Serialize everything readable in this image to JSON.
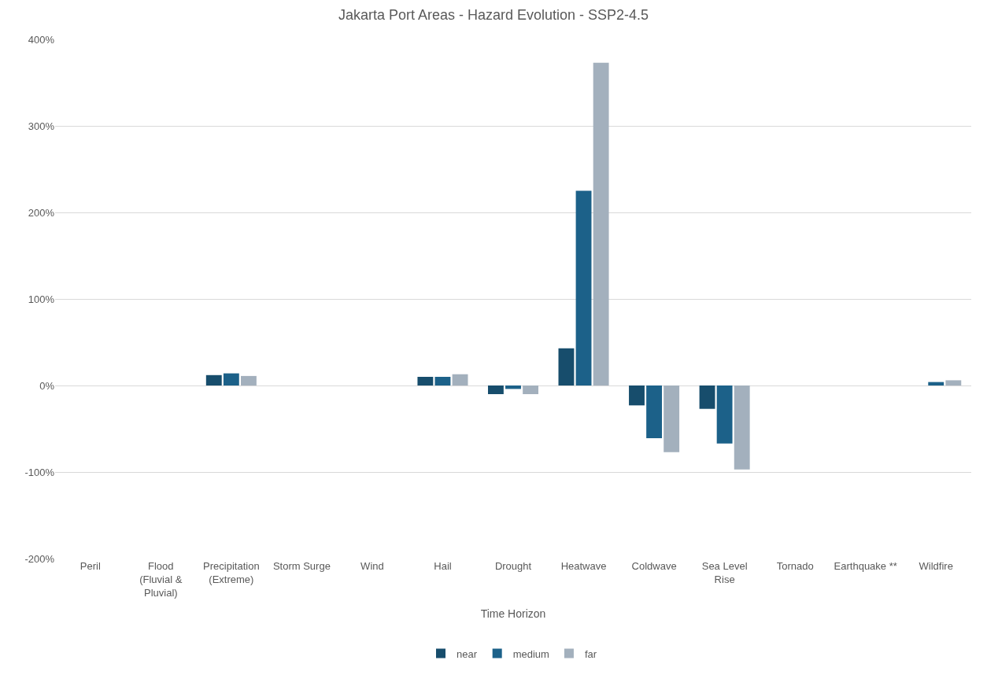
{
  "chart_data": {
    "type": "bar",
    "title": "Jakarta Port Areas - Hazard Evolution - SSP2-4.5",
    "xlabel": "Time Horizon",
    "categories": [
      "Peril",
      "Flood (Fluvial & Pluvial)",
      "Precipitation (Extreme)",
      "Storm Surge",
      "Wind",
      "Hail",
      "Drought",
      "Heatwave",
      "Coldwave",
      "Sea Level Rise",
      "Tornado",
      "Earthquake **",
      "Wildfire"
    ],
    "series": [
      {
        "name": "near",
        "color": "#174d6c",
        "values": [
          null,
          null,
          12,
          null,
          null,
          10,
          -10,
          43,
          -23,
          -27,
          null,
          null,
          null
        ]
      },
      {
        "name": "medium",
        "color": "#1c6189",
        "values": [
          null,
          null,
          14,
          null,
          null,
          10,
          -4,
          225,
          -61,
          -67,
          null,
          null,
          4
        ]
      },
      {
        "name": "far",
        "color": "#a3b0bd",
        "values": [
          null,
          null,
          11,
          null,
          null,
          13,
          -10,
          373,
          -77,
          -97,
          null,
          null,
          6
        ]
      }
    ],
    "ylim": [
      -200,
      400
    ],
    "yticks": [
      {
        "value": -200,
        "label": "-200%"
      },
      {
        "value": -100,
        "label": "-100%"
      },
      {
        "value": 0,
        "label": "0%"
      },
      {
        "value": 100,
        "label": "100%"
      },
      {
        "value": 200,
        "label": "200%"
      },
      {
        "value": 300,
        "label": "300%"
      },
      {
        "value": 400,
        "label": "400%"
      }
    ],
    "grid": "y",
    "legend": "bottom"
  }
}
